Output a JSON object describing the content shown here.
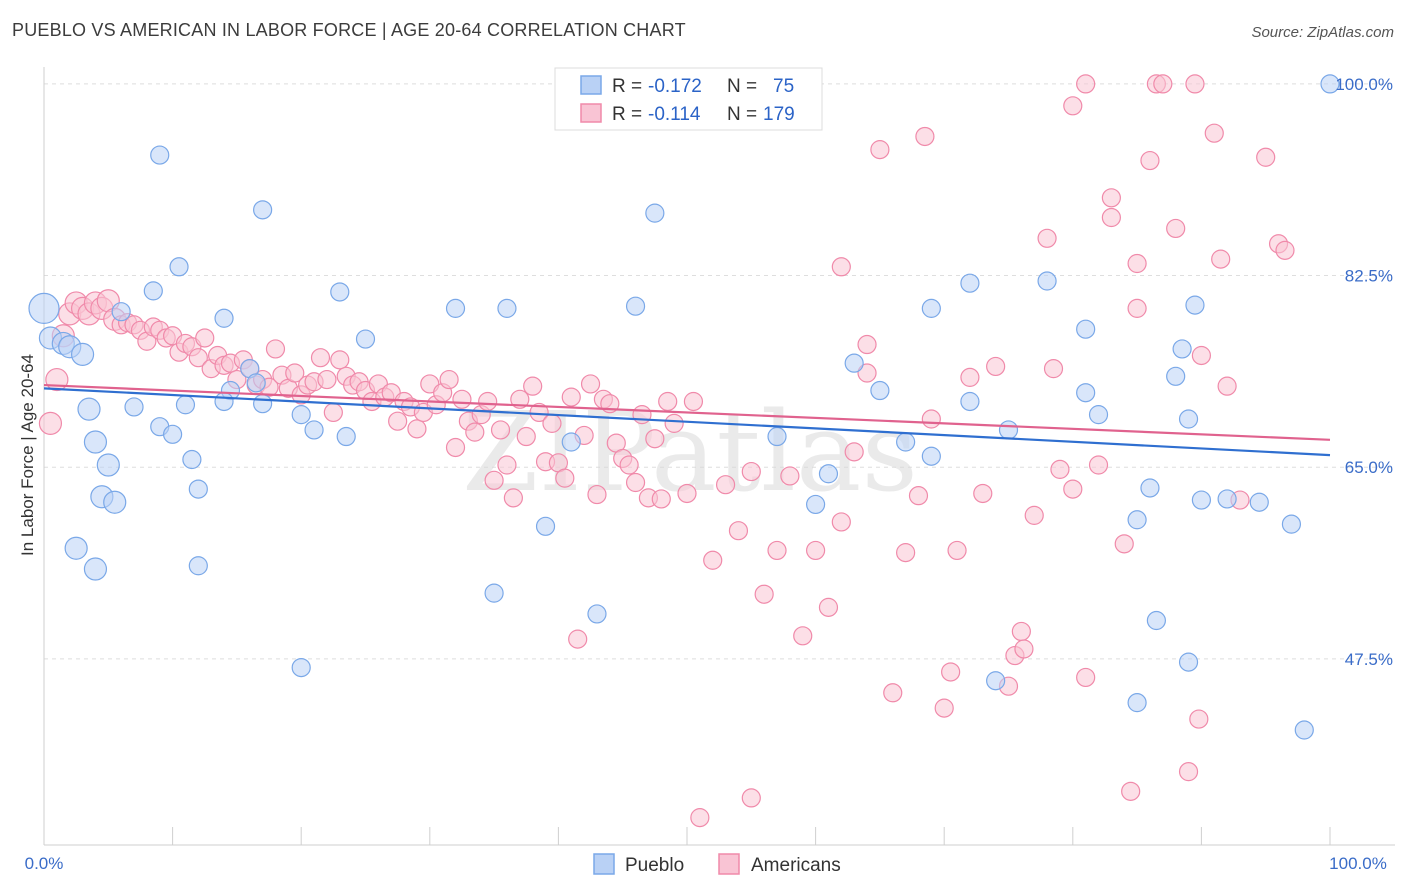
{
  "title": "PUEBLO VS AMERICAN IN LABOR FORCE | AGE 20-64 CORRELATION CHART",
  "source": "Source: ZipAtlas.com",
  "watermark": "ZIPatlas",
  "chart_data": {
    "type": "scatter",
    "ylabel": "In Labor Force | Age 20-64",
    "xlim": [
      0,
      100
    ],
    "ylim": [
      30.5,
      102
    ],
    "x_tick_labels": [
      "0.0%",
      "100.0%"
    ],
    "y_ticks": [
      {
        "value": 100,
        "label": "100.0%"
      },
      {
        "value": 82.5,
        "label": "82.5%"
      },
      {
        "value": 65,
        "label": "65.0%"
      },
      {
        "value": 47.5,
        "label": "47.5%"
      }
    ],
    "grid": true,
    "legend_position": "top-center",
    "stats": [
      {
        "r_label": "R =",
        "r_value": "-0.172",
        "n_label": "N =",
        "n_value": "75"
      },
      {
        "r_label": "R =",
        "r_value": "-0.114",
        "n_label": "N =",
        "n_value": "179"
      }
    ],
    "series": [
      {
        "name": "Pueblo",
        "color": "#7aa8e8",
        "fill": "#b9d1f5",
        "line_color": "#2f6fd0",
        "trend": [
          [
            0,
            72.2
          ],
          [
            100,
            66.1
          ]
        ],
        "points": [
          [
            0,
            79.5
          ],
          [
            0.5,
            76.8
          ],
          [
            1.5,
            76.3
          ],
          [
            2,
            76.0
          ],
          [
            3,
            75.3
          ],
          [
            3.5,
            70.3
          ],
          [
            4,
            67.3
          ],
          [
            5,
            65.2
          ],
          [
            4.5,
            62.3
          ],
          [
            2.5,
            57.6
          ],
          [
            4,
            55.7
          ],
          [
            5.5,
            61.8
          ],
          [
            6,
            79.2
          ],
          [
            7,
            70.5
          ],
          [
            8.5,
            81.1
          ],
          [
            9,
            68.7
          ],
          [
            10,
            68.0
          ],
          [
            9,
            93.5
          ],
          [
            10.5,
            83.3
          ],
          [
            11,
            70.7
          ],
          [
            11.5,
            65.7
          ],
          [
            12,
            63.0
          ],
          [
            12,
            56.0
          ],
          [
            14,
            78.6
          ],
          [
            14.5,
            72.0
          ],
          [
            14,
            71.0
          ],
          [
            16,
            74.0
          ],
          [
            16.5,
            72.7
          ],
          [
            17,
            70.8
          ],
          [
            17,
            88.5
          ],
          [
            20,
            69.8
          ],
          [
            21,
            68.4
          ],
          [
            20,
            46.7
          ],
          [
            23,
            81.0
          ],
          [
            23.5,
            67.8
          ],
          [
            25,
            76.7
          ],
          [
            32,
            79.5
          ],
          [
            35,
            53.5
          ],
          [
            36,
            79.5
          ],
          [
            39,
            59.6
          ],
          [
            41,
            67.3
          ],
          [
            43,
            51.6
          ],
          [
            46,
            79.7
          ],
          [
            47.5,
            88.2
          ],
          [
            57,
            67.8
          ],
          [
            60,
            61.6
          ],
          [
            61,
            64.4
          ],
          [
            63,
            74.5
          ],
          [
            65,
            72.0
          ],
          [
            67,
            67.3
          ],
          [
            69,
            66.0
          ],
          [
            69,
            79.5
          ],
          [
            72,
            81.8
          ],
          [
            72,
            71.0
          ],
          [
            75,
            68.4
          ],
          [
            78,
            82.0
          ],
          [
            81,
            77.6
          ],
          [
            81,
            71.8
          ],
          [
            82,
            69.8
          ],
          [
            85,
            60.2
          ],
          [
            86,
            63.1
          ],
          [
            86.5,
            51.0
          ],
          [
            88,
            73.3
          ],
          [
            88.5,
            75.8
          ],
          [
            89,
            69.4
          ],
          [
            89.5,
            79.8
          ],
          [
            92,
            62.1
          ],
          [
            94.5,
            61.8
          ],
          [
            97,
            59.8
          ],
          [
            98,
            41.0
          ],
          [
            100,
            100.0
          ],
          [
            89,
            47.2
          ],
          [
            85,
            43.5
          ],
          [
            74,
            45.5
          ],
          [
            90,
            62.0
          ]
        ]
      },
      {
        "name": "Americans",
        "color": "#f08aaa",
        "fill": "#f9c4d4",
        "line_color": "#e0628e",
        "trend": [
          [
            0,
            72.5
          ],
          [
            100,
            67.5
          ]
        ],
        "points": [
          [
            0.5,
            69.0
          ],
          [
            1,
            73.0
          ],
          [
            1.5,
            77.0
          ],
          [
            2,
            79.0
          ],
          [
            2.5,
            80.0
          ],
          [
            3,
            79.5
          ],
          [
            3.5,
            79.0
          ],
          [
            4,
            80.0
          ],
          [
            4.5,
            79.5
          ],
          [
            5,
            80.2
          ],
          [
            5.5,
            78.5
          ],
          [
            6,
            78.0
          ],
          [
            6.5,
            78.2
          ],
          [
            7,
            78.0
          ],
          [
            7.5,
            77.5
          ],
          [
            8,
            76.5
          ],
          [
            8.5,
            77.8
          ],
          [
            9,
            77.5
          ],
          [
            9.5,
            76.8
          ],
          [
            10,
            77.0
          ],
          [
            10.5,
            75.5
          ],
          [
            11,
            76.3
          ],
          [
            11.5,
            76.0
          ],
          [
            12,
            75.0
          ],
          [
            12.5,
            76.8
          ],
          [
            13,
            74.0
          ],
          [
            13.5,
            75.2
          ],
          [
            14,
            74.3
          ],
          [
            14.5,
            74.5
          ],
          [
            15,
            73.0
          ],
          [
            15.5,
            74.8
          ],
          [
            16,
            74.0
          ],
          [
            16.5,
            72.5
          ],
          [
            17,
            73.0
          ],
          [
            17.5,
            72.3
          ],
          [
            18,
            75.8
          ],
          [
            18.5,
            73.4
          ],
          [
            19,
            72.2
          ],
          [
            19.5,
            73.6
          ],
          [
            20,
            71.6
          ],
          [
            20.5,
            72.5
          ],
          [
            21,
            72.8
          ],
          [
            21.5,
            75.0
          ],
          [
            22,
            73.0
          ],
          [
            22.5,
            70.0
          ],
          [
            23,
            74.8
          ],
          [
            23.5,
            73.3
          ],
          [
            24,
            72.5
          ],
          [
            24.5,
            72.8
          ],
          [
            25,
            72.0
          ],
          [
            25.5,
            71.0
          ],
          [
            26,
            72.6
          ],
          [
            26.5,
            71.4
          ],
          [
            27,
            71.8
          ],
          [
            27.5,
            69.2
          ],
          [
            28,
            71.0
          ],
          [
            28.5,
            70.5
          ],
          [
            29,
            68.5
          ],
          [
            29.5,
            70.0
          ],
          [
            30,
            72.6
          ],
          [
            30.5,
            70.7
          ],
          [
            31,
            71.8
          ],
          [
            31.5,
            73.0
          ],
          [
            32,
            66.8
          ],
          [
            32.5,
            71.2
          ],
          [
            33,
            69.2
          ],
          [
            33.5,
            68.2
          ],
          [
            34,
            69.8
          ],
          [
            34.5,
            71.0
          ],
          [
            35,
            63.8
          ],
          [
            35.5,
            68.4
          ],
          [
            36,
            65.2
          ],
          [
            36.5,
            62.2
          ],
          [
            37,
            71.2
          ],
          [
            37.5,
            67.8
          ],
          [
            38,
            72.4
          ],
          [
            38.5,
            70.0
          ],
          [
            39,
            65.5
          ],
          [
            39.5,
            69.0
          ],
          [
            40,
            65.4
          ],
          [
            40.5,
            64.0
          ],
          [
            41,
            71.4
          ],
          [
            41.5,
            49.3
          ],
          [
            42,
            67.9
          ],
          [
            42.5,
            72.6
          ],
          [
            43,
            62.5
          ],
          [
            43.5,
            71.2
          ],
          [
            44,
            70.8
          ],
          [
            44.5,
            67.2
          ],
          [
            45,
            65.8
          ],
          [
            45.5,
            65.2
          ],
          [
            46,
            63.6
          ],
          [
            46.5,
            69.8
          ],
          [
            47,
            62.2
          ],
          [
            47.5,
            67.6
          ],
          [
            48,
            62.1
          ],
          [
            48.5,
            71.0
          ],
          [
            49,
            69.0
          ],
          [
            50,
            62.6
          ],
          [
            50.5,
            71.0
          ],
          [
            51,
            33.0
          ],
          [
            52,
            56.5
          ],
          [
            53,
            63.4
          ],
          [
            54,
            59.2
          ],
          [
            55,
            64.6
          ],
          [
            56,
            53.4
          ],
          [
            57,
            57.4
          ],
          [
            58,
            64.2
          ],
          [
            59,
            49.6
          ],
          [
            60,
            57.4
          ],
          [
            61,
            52.2
          ],
          [
            62,
            83.3
          ],
          [
            62,
            60.0
          ],
          [
            63,
            66.4
          ],
          [
            64,
            76.2
          ],
          [
            65,
            94.0
          ],
          [
            66,
            44.4
          ],
          [
            67,
            57.2
          ],
          [
            68,
            62.4
          ],
          [
            68.5,
            95.2
          ],
          [
            69,
            69.4
          ],
          [
            70,
            43.0
          ],
          [
            71,
            57.4
          ],
          [
            72,
            73.2
          ],
          [
            73,
            62.6
          ],
          [
            74,
            74.2
          ],
          [
            75,
            45.0
          ],
          [
            76,
            50.0
          ],
          [
            77,
            60.6
          ],
          [
            78,
            85.9
          ],
          [
            78.5,
            74.0
          ],
          [
            79,
            64.8
          ],
          [
            80,
            63.0
          ],
          [
            80,
            98.0
          ],
          [
            81,
            45.8
          ],
          [
            81,
            100.0
          ],
          [
            82,
            65.2
          ],
          [
            83,
            87.8
          ],
          [
            83,
            89.6
          ],
          [
            84,
            58.0
          ],
          [
            85,
            83.6
          ],
          [
            85,
            79.5
          ],
          [
            86,
            93.0
          ],
          [
            86.5,
            100.0
          ],
          [
            87,
            100.0
          ],
          [
            88,
            86.8
          ],
          [
            89,
            37.2
          ],
          [
            89.5,
            100.0
          ],
          [
            90,
            75.2
          ],
          [
            91,
            95.5
          ],
          [
            91.5,
            84.0
          ],
          [
            92,
            72.4
          ],
          [
            93,
            62.0
          ],
          [
            95,
            93.3
          ],
          [
            96,
            85.4
          ],
          [
            55,
            34.8
          ],
          [
            64,
            73.6
          ],
          [
            70.5,
            46.3
          ],
          [
            75.5,
            47.8
          ],
          [
            84.5,
            35.4
          ],
          [
            76.2,
            48.4
          ],
          [
            89.8,
            42.0
          ],
          [
            96.5,
            84.8
          ]
        ]
      }
    ]
  }
}
